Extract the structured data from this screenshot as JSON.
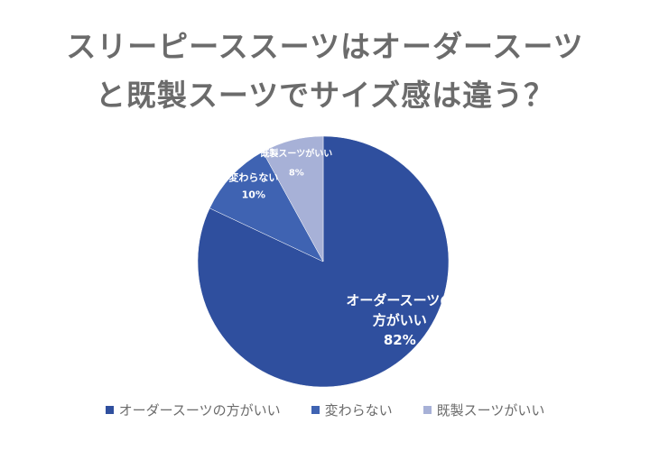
{
  "title_lines": [
    "スリーピーススーツはオーダースーツ",
    "と既製スーツでサイズ感は違う？"
  ],
  "chart_data": {
    "type": "pie",
    "title": "スリーピーススーツはオーダースーツと既製スーツでサイズ感は違う？",
    "categories": [
      "オーダースーツの方がいい",
      "変わらない",
      "既製スーツがいい"
    ],
    "values": [
      82,
      10,
      8
    ],
    "unit": "%",
    "colors": [
      "#2f4f9e",
      "#3f63b2",
      "#a7b1d7"
    ],
    "data_labels": [
      {
        "lines": [
          "オーダースーツの",
          "方がいい"
        ],
        "value": "82%"
      },
      {
        "lines": [
          "変わらない"
        ],
        "value": "10%"
      },
      {
        "lines": [
          "既製スーツがいい"
        ],
        "value": "8%"
      }
    ],
    "legend_placement": "bottom"
  }
}
